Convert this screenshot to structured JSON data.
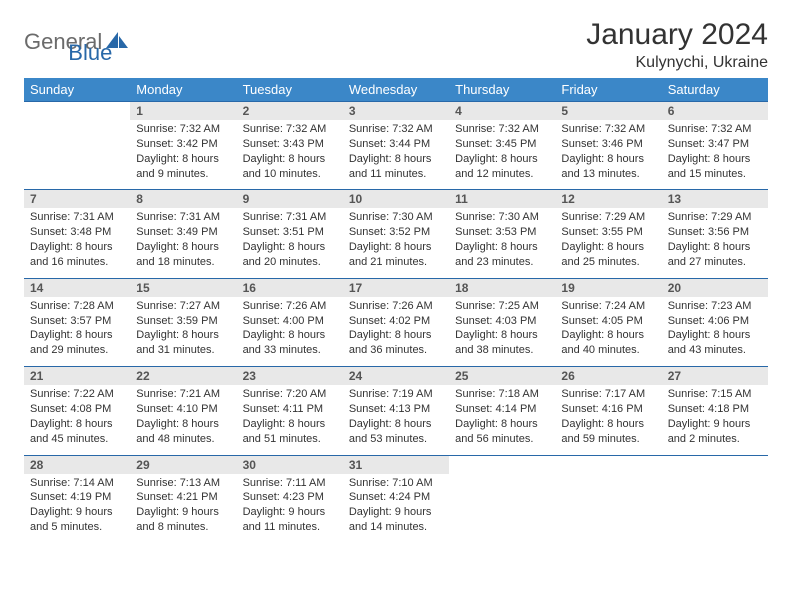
{
  "brand": {
    "part1": "General",
    "part2": "Blue"
  },
  "header": {
    "title": "January 2024",
    "location": "Kulynychi, Ukraine"
  },
  "colors": {
    "header_bg": "#3b87c8",
    "row_divider": "#2868a8",
    "daynum_bg": "#e8e8e8",
    "text": "#333333",
    "muted_text": "#6b6b6b"
  },
  "typography": {
    "title_fontsize": 30,
    "location_fontsize": 16,
    "dayhead_fontsize": 13,
    "cell_fontsize": 11
  },
  "day_names": [
    "Sunday",
    "Monday",
    "Tuesday",
    "Wednesday",
    "Thursday",
    "Friday",
    "Saturday"
  ],
  "weeks": [
    {
      "nums": [
        "",
        "1",
        "2",
        "3",
        "4",
        "5",
        "6"
      ],
      "details": [
        {
          "sunrise": "",
          "sunset": "",
          "daylight": ""
        },
        {
          "sunrise": "Sunrise: 7:32 AM",
          "sunset": "Sunset: 3:42 PM",
          "daylight": "Daylight: 8 hours and 9 minutes."
        },
        {
          "sunrise": "Sunrise: 7:32 AM",
          "sunset": "Sunset: 3:43 PM",
          "daylight": "Daylight: 8 hours and 10 minutes."
        },
        {
          "sunrise": "Sunrise: 7:32 AM",
          "sunset": "Sunset: 3:44 PM",
          "daylight": "Daylight: 8 hours and 11 minutes."
        },
        {
          "sunrise": "Sunrise: 7:32 AM",
          "sunset": "Sunset: 3:45 PM",
          "daylight": "Daylight: 8 hours and 12 minutes."
        },
        {
          "sunrise": "Sunrise: 7:32 AM",
          "sunset": "Sunset: 3:46 PM",
          "daylight": "Daylight: 8 hours and 13 minutes."
        },
        {
          "sunrise": "Sunrise: 7:32 AM",
          "sunset": "Sunset: 3:47 PM",
          "daylight": "Daylight: 8 hours and 15 minutes."
        }
      ]
    },
    {
      "nums": [
        "7",
        "8",
        "9",
        "10",
        "11",
        "12",
        "13"
      ],
      "details": [
        {
          "sunrise": "Sunrise: 7:31 AM",
          "sunset": "Sunset: 3:48 PM",
          "daylight": "Daylight: 8 hours and 16 minutes."
        },
        {
          "sunrise": "Sunrise: 7:31 AM",
          "sunset": "Sunset: 3:49 PM",
          "daylight": "Daylight: 8 hours and 18 minutes."
        },
        {
          "sunrise": "Sunrise: 7:31 AM",
          "sunset": "Sunset: 3:51 PM",
          "daylight": "Daylight: 8 hours and 20 minutes."
        },
        {
          "sunrise": "Sunrise: 7:30 AM",
          "sunset": "Sunset: 3:52 PM",
          "daylight": "Daylight: 8 hours and 21 minutes."
        },
        {
          "sunrise": "Sunrise: 7:30 AM",
          "sunset": "Sunset: 3:53 PM",
          "daylight": "Daylight: 8 hours and 23 minutes."
        },
        {
          "sunrise": "Sunrise: 7:29 AM",
          "sunset": "Sunset: 3:55 PM",
          "daylight": "Daylight: 8 hours and 25 minutes."
        },
        {
          "sunrise": "Sunrise: 7:29 AM",
          "sunset": "Sunset: 3:56 PM",
          "daylight": "Daylight: 8 hours and 27 minutes."
        }
      ]
    },
    {
      "nums": [
        "14",
        "15",
        "16",
        "17",
        "18",
        "19",
        "20"
      ],
      "details": [
        {
          "sunrise": "Sunrise: 7:28 AM",
          "sunset": "Sunset: 3:57 PM",
          "daylight": "Daylight: 8 hours and 29 minutes."
        },
        {
          "sunrise": "Sunrise: 7:27 AM",
          "sunset": "Sunset: 3:59 PM",
          "daylight": "Daylight: 8 hours and 31 minutes."
        },
        {
          "sunrise": "Sunrise: 7:26 AM",
          "sunset": "Sunset: 4:00 PM",
          "daylight": "Daylight: 8 hours and 33 minutes."
        },
        {
          "sunrise": "Sunrise: 7:26 AM",
          "sunset": "Sunset: 4:02 PM",
          "daylight": "Daylight: 8 hours and 36 minutes."
        },
        {
          "sunrise": "Sunrise: 7:25 AM",
          "sunset": "Sunset: 4:03 PM",
          "daylight": "Daylight: 8 hours and 38 minutes."
        },
        {
          "sunrise": "Sunrise: 7:24 AM",
          "sunset": "Sunset: 4:05 PM",
          "daylight": "Daylight: 8 hours and 40 minutes."
        },
        {
          "sunrise": "Sunrise: 7:23 AM",
          "sunset": "Sunset: 4:06 PM",
          "daylight": "Daylight: 8 hours and 43 minutes."
        }
      ]
    },
    {
      "nums": [
        "21",
        "22",
        "23",
        "24",
        "25",
        "26",
        "27"
      ],
      "details": [
        {
          "sunrise": "Sunrise: 7:22 AM",
          "sunset": "Sunset: 4:08 PM",
          "daylight": "Daylight: 8 hours and 45 minutes."
        },
        {
          "sunrise": "Sunrise: 7:21 AM",
          "sunset": "Sunset: 4:10 PM",
          "daylight": "Daylight: 8 hours and 48 minutes."
        },
        {
          "sunrise": "Sunrise: 7:20 AM",
          "sunset": "Sunset: 4:11 PM",
          "daylight": "Daylight: 8 hours and 51 minutes."
        },
        {
          "sunrise": "Sunrise: 7:19 AM",
          "sunset": "Sunset: 4:13 PM",
          "daylight": "Daylight: 8 hours and 53 minutes."
        },
        {
          "sunrise": "Sunrise: 7:18 AM",
          "sunset": "Sunset: 4:14 PM",
          "daylight": "Daylight: 8 hours and 56 minutes."
        },
        {
          "sunrise": "Sunrise: 7:17 AM",
          "sunset": "Sunset: 4:16 PM",
          "daylight": "Daylight: 8 hours and 59 minutes."
        },
        {
          "sunrise": "Sunrise: 7:15 AM",
          "sunset": "Sunset: 4:18 PM",
          "daylight": "Daylight: 9 hours and 2 minutes."
        }
      ]
    },
    {
      "nums": [
        "28",
        "29",
        "30",
        "31",
        "",
        "",
        ""
      ],
      "details": [
        {
          "sunrise": "Sunrise: 7:14 AM",
          "sunset": "Sunset: 4:19 PM",
          "daylight": "Daylight: 9 hours and 5 minutes."
        },
        {
          "sunrise": "Sunrise: 7:13 AM",
          "sunset": "Sunset: 4:21 PM",
          "daylight": "Daylight: 9 hours and 8 minutes."
        },
        {
          "sunrise": "Sunrise: 7:11 AM",
          "sunset": "Sunset: 4:23 PM",
          "daylight": "Daylight: 9 hours and 11 minutes."
        },
        {
          "sunrise": "Sunrise: 7:10 AM",
          "sunset": "Sunset: 4:24 PM",
          "daylight": "Daylight: 9 hours and 14 minutes."
        },
        {
          "sunrise": "",
          "sunset": "",
          "daylight": ""
        },
        {
          "sunrise": "",
          "sunset": "",
          "daylight": ""
        },
        {
          "sunrise": "",
          "sunset": "",
          "daylight": ""
        }
      ]
    }
  ]
}
